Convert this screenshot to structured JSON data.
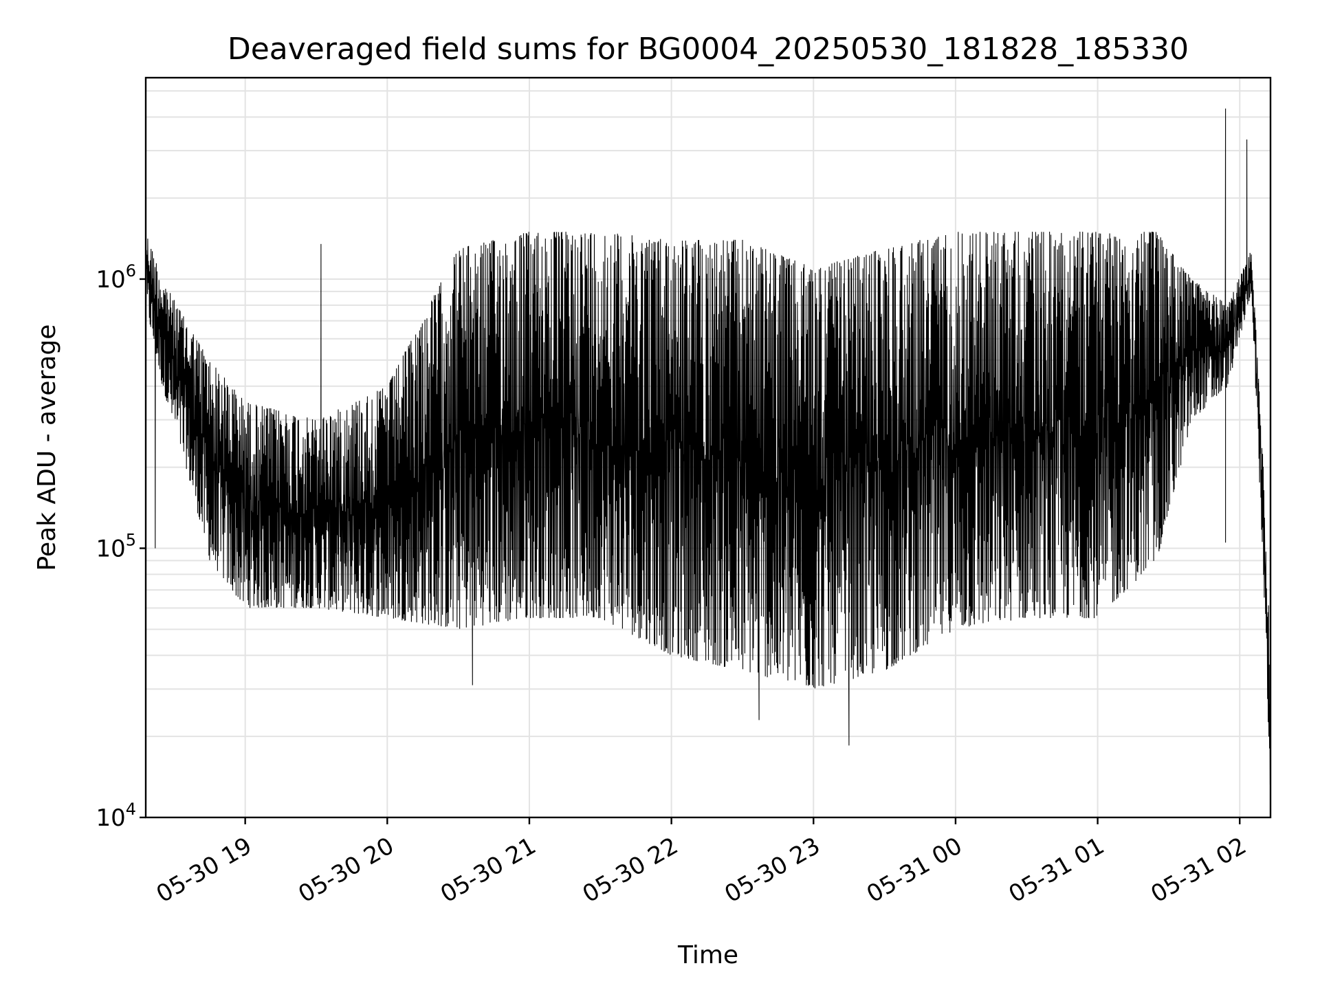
{
  "chart_data": {
    "type": "line",
    "title": "Deaveraged field sums for BG0004_20250530_181828_185330",
    "xlabel": "Time",
    "ylabel": "Peak ADU - average",
    "yscale": "log",
    "ylim": [
      10000,
      5600000
    ],
    "xlim": [
      "2025-05-30 18:18",
      "2025-05-31 02:13"
    ],
    "grid": true,
    "x_ticks": [
      {
        "label": "05-30 19",
        "time": "2025-05-30 19:00"
      },
      {
        "label": "05-30 20",
        "time": "2025-05-30 20:00"
      },
      {
        "label": "05-30 21",
        "time": "2025-05-30 21:00"
      },
      {
        "label": "05-30 22",
        "time": "2025-05-30 22:00"
      },
      {
        "label": "05-30 23",
        "time": "2025-05-30 23:00"
      },
      {
        "label": "05-31 00",
        "time": "2025-05-31 00:00"
      },
      {
        "label": "05-31 01",
        "time": "2025-05-31 01:00"
      },
      {
        "label": "05-31 02",
        "time": "2025-05-31 02:00"
      }
    ],
    "y_ticks": [
      {
        "base": "10",
        "exp": "4",
        "value": 10000
      },
      {
        "base": "10",
        "exp": "5",
        "value": 100000
      },
      {
        "base": "10",
        "exp": "6",
        "value": 1000000
      }
    ],
    "series": [
      {
        "color": "#000000",
        "envelope": [
          {
            "time": "2025-05-30 18:18",
            "upper": 1500000,
            "lower": 800000
          },
          {
            "time": "2025-05-30 18:25",
            "upper": 1000000,
            "lower": 400000
          },
          {
            "time": "2025-05-30 18:35",
            "upper": 700000,
            "lower": 200000
          },
          {
            "time": "2025-05-30 18:45",
            "upper": 500000,
            "lower": 90000
          },
          {
            "time": "2025-05-30 19:00",
            "upper": 350000,
            "lower": 60000
          },
          {
            "time": "2025-05-30 19:30",
            "upper": 300000,
            "lower": 60000
          },
          {
            "time": "2025-05-30 20:00",
            "upper": 400000,
            "lower": 55000
          },
          {
            "time": "2025-05-30 20:30",
            "upper": 1300000,
            "lower": 50000
          },
          {
            "time": "2025-05-30 21:00",
            "upper": 1500000,
            "lower": 55000
          },
          {
            "time": "2025-05-30 21:30",
            "upper": 1500000,
            "lower": 55000
          },
          {
            "time": "2025-05-30 22:00",
            "upper": 1400000,
            "lower": 40000
          },
          {
            "time": "2025-05-30 22:30",
            "upper": 1400000,
            "lower": 35000
          },
          {
            "time": "2025-05-30 23:00",
            "upper": 1100000,
            "lower": 30000
          },
          {
            "time": "2025-05-30 23:30",
            "upper": 1300000,
            "lower": 35000
          },
          {
            "time": "2025-05-31 00:00",
            "upper": 1500000,
            "lower": 50000
          },
          {
            "time": "2025-05-31 00:30",
            "upper": 1500000,
            "lower": 55000
          },
          {
            "time": "2025-05-31 01:00",
            "upper": 1500000,
            "lower": 55000
          },
          {
            "time": "2025-05-31 01:25",
            "upper": 1500000,
            "lower": 90000
          },
          {
            "time": "2025-05-31 01:40",
            "upper": 1000000,
            "lower": 300000
          },
          {
            "time": "2025-05-31 01:55",
            "upper": 800000,
            "lower": 400000
          },
          {
            "time": "2025-05-31 02:05",
            "upper": 1300000,
            "lower": 900000
          },
          {
            "time": "2025-05-31 02:10",
            "upper": 200000,
            "lower": 80000
          },
          {
            "time": "2025-05-31 02:13",
            "upper": 40000,
            "lower": 12000
          }
        ],
        "spikes": [
          {
            "time": "2025-05-30 18:22",
            "value": 100000
          },
          {
            "time": "2025-05-30 19:32",
            "value": 1350000
          },
          {
            "time": "2025-05-30 20:36",
            "value": 31000
          },
          {
            "time": "2025-05-30 22:37",
            "value": 23000
          },
          {
            "time": "2025-05-30 23:15",
            "value": 18500
          },
          {
            "time": "2025-05-31 01:54",
            "value": 4300000
          },
          {
            "time": "2025-05-31 01:54",
            "value": 105000
          },
          {
            "time": "2025-05-31 02:03",
            "value": 3300000
          }
        ]
      }
    ]
  }
}
